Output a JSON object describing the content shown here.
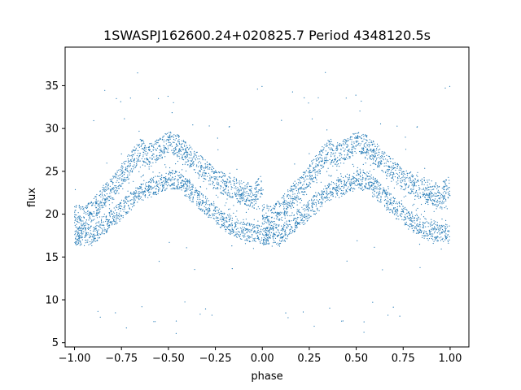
{
  "chart_data": {
    "type": "scatter",
    "title": "1SWASPJ162600.24+020825.7 Period 4348120.5s",
    "xlabel": "phase",
    "ylabel": "flux",
    "xlim": [
      -1.05,
      1.1
    ],
    "ylim": [
      4.5,
      39.5
    ],
    "x_ticks": [
      -1.0,
      -0.75,
      -0.5,
      -0.25,
      0.0,
      0.25,
      0.5,
      0.75,
      1.0
    ],
    "x_tick_labels": [
      "−1.00",
      "−0.75",
      "−0.50",
      "−0.25",
      "0.00",
      "0.25",
      "0.50",
      "0.75",
      "1.00"
    ],
    "y_ticks": [
      5,
      10,
      15,
      20,
      25,
      30,
      35
    ],
    "y_tick_labels": [
      "5",
      "10",
      "15",
      "20",
      "25",
      "30",
      "35"
    ],
    "grid": false,
    "marker_color": "#1f77b4",
    "series": [
      {
        "description_of_trend": "dense folded light curve, repeated over two cycles",
        "envelope_phase": [
          0.0,
          0.05,
          0.1,
          0.15,
          0.2,
          0.25,
          0.3,
          0.35,
          0.4,
          0.45,
          0.5,
          0.55,
          0.6,
          0.65,
          0.7,
          0.75,
          0.8,
          0.85,
          0.9,
          0.95,
          1.0
        ],
        "lower_branch": [
          17.5,
          17.2,
          17.6,
          18.5,
          19.5,
          20.5,
          21.5,
          22.5,
          23.0,
          23.5,
          24.0,
          24.0,
          23.0,
          22.0,
          21.0,
          20.0,
          19.0,
          18.5,
          18.0,
          17.8,
          17.5
        ],
        "upper_branch": [
          20.0,
          19.5,
          20.5,
          22.0,
          23.0,
          24.5,
          26.0,
          27.5,
          27.0,
          27.5,
          28.5,
          28.0,
          27.0,
          26.0,
          25.0,
          24.0,
          23.5,
          23.0,
          22.5,
          22.0,
          23.5
        ],
        "outlier_range": [
          6.0,
          37.0
        ]
      }
    ]
  }
}
